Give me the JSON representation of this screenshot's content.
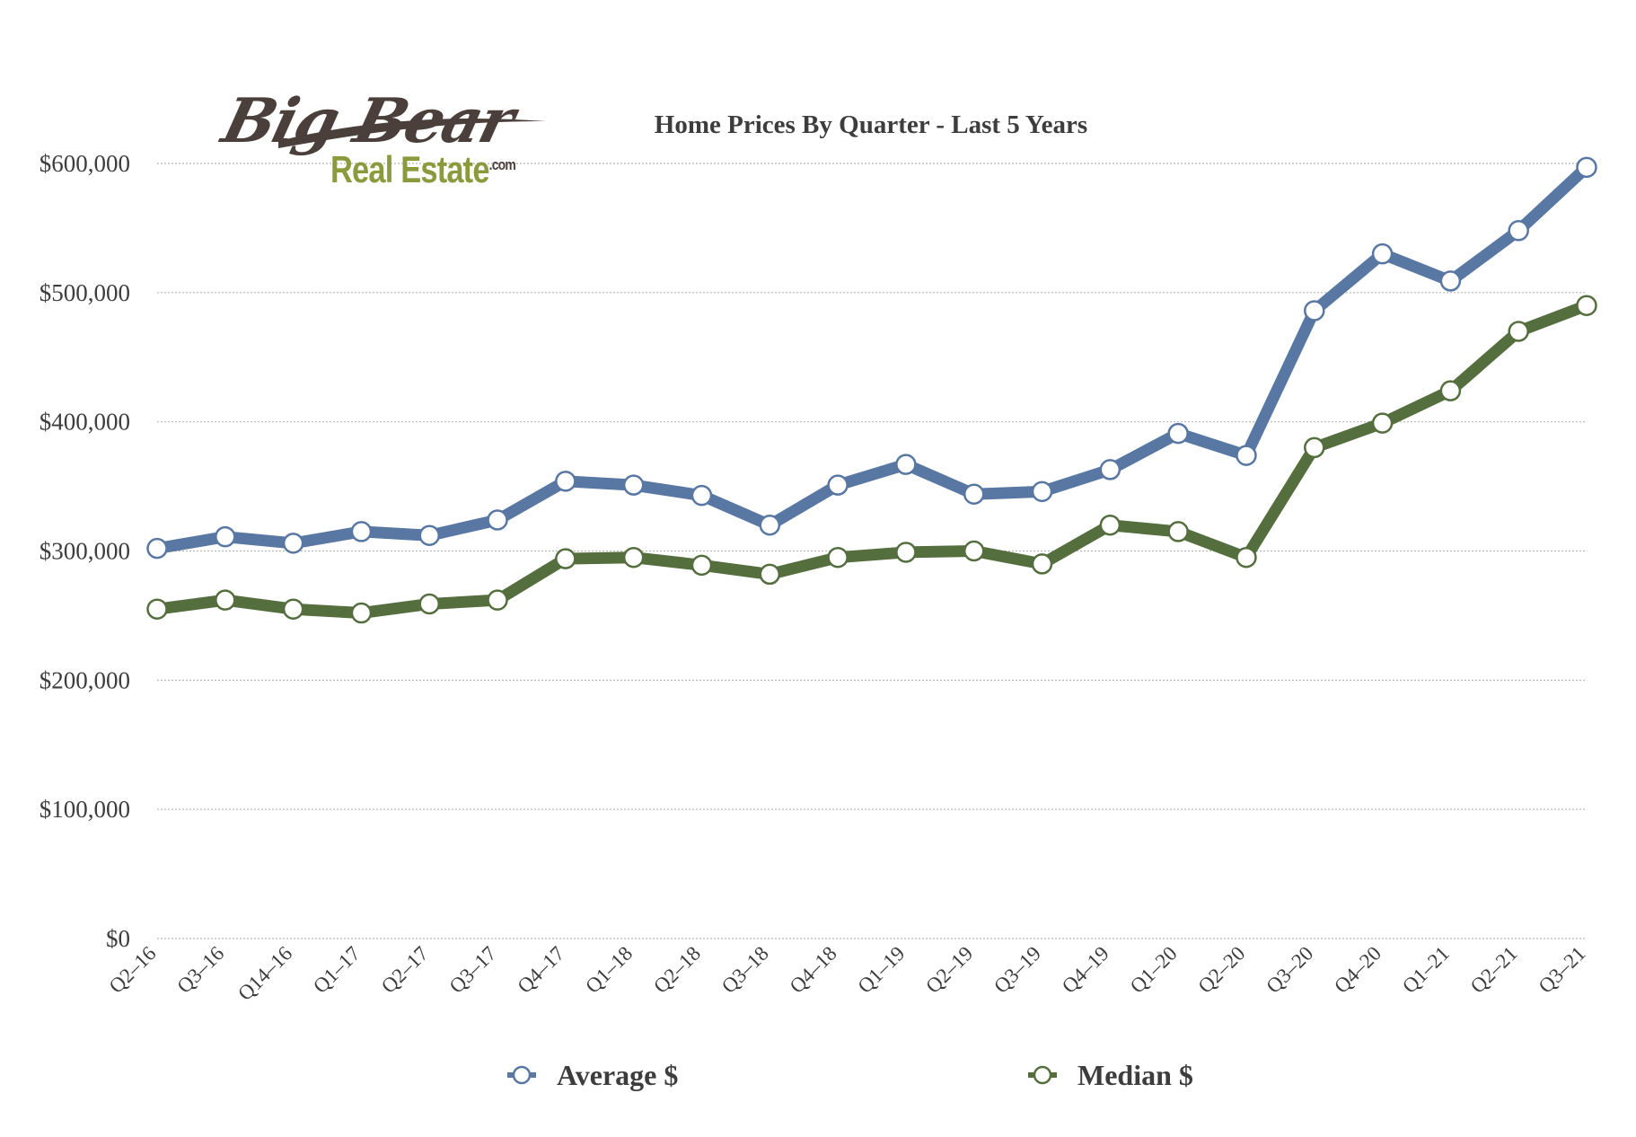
{
  "logo": {
    "line1": "Big Bear",
    "line2": "Real Estate",
    "suffix": ".com"
  },
  "colors": {
    "average": "#5877a3",
    "median": "#546e3e",
    "grid": "#b5b5b5",
    "text": "#3d3d3d"
  },
  "chart_data": {
    "type": "line",
    "title": "Home Prices By Quarter - Last 5 Years",
    "xlabel": "",
    "ylabel": "",
    "ylim": [
      0,
      600000
    ],
    "y_ticks": [
      0,
      100000,
      200000,
      300000,
      400000,
      500000,
      600000
    ],
    "y_tick_labels": [
      "$0",
      "$100,000",
      "$200,000",
      "$300,000",
      "$400,000",
      "$500,000",
      "$600,000"
    ],
    "grid": true,
    "legend_position": "bottom",
    "categories": [
      "Q2–16",
      "Q3–16",
      "Q14–16",
      "Q1–17",
      "Q2–17",
      "Q3–17",
      "Q4–17",
      "Q1–18",
      "Q2–18",
      "Q3–18",
      "Q4–18",
      "Q1–19",
      "Q2–19",
      "Q3–19",
      "Q4–19",
      "Q1–20",
      "Q2–20",
      "Q3–20",
      "Q4–20",
      "Q1–21",
      "Q2–21",
      "Q3–21"
    ],
    "series": [
      {
        "name": "Average $",
        "color": "#5877a3",
        "values": [
          302000,
          311000,
          306000,
          315000,
          312000,
          324000,
          354000,
          351000,
          343000,
          320000,
          351000,
          367000,
          344000,
          346000,
          363000,
          391000,
          374000,
          486000,
          530000,
          509000,
          548000,
          597000
        ]
      },
      {
        "name": "Median $",
        "color": "#546e3e",
        "values": [
          255000,
          262000,
          255000,
          252000,
          259000,
          262000,
          294000,
          295000,
          289000,
          282000,
          295000,
          299000,
          300000,
          290000,
          320000,
          315000,
          295000,
          380000,
          399000,
          424000,
          470000,
          490000
        ]
      }
    ]
  }
}
